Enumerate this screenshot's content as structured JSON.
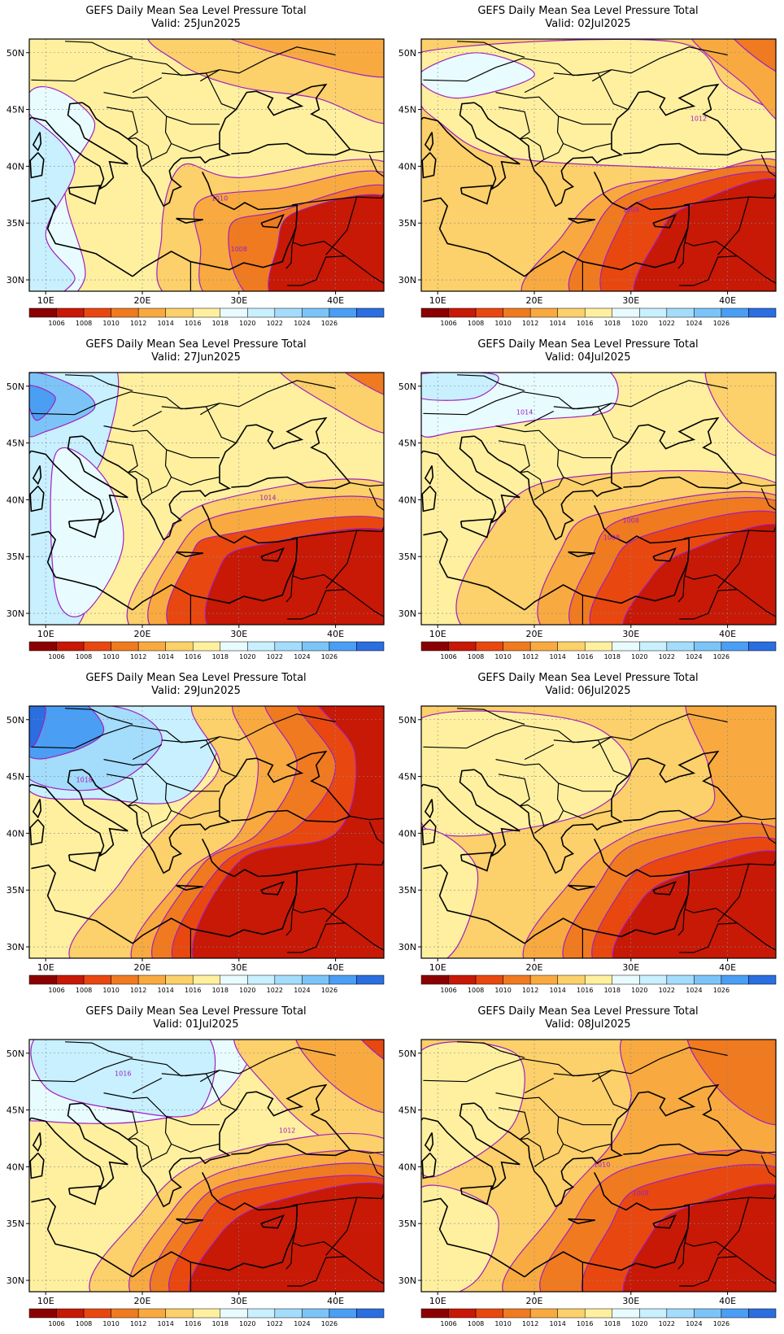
{
  "figure": {
    "title_line": "GEFS Daily Mean Sea Level Pressure Total",
    "valid_prefix": "Valid:",
    "lat_labels": [
      "50N",
      "45N",
      "40N",
      "35N",
      "30N"
    ],
    "lon_labels": [
      "10E",
      "20E",
      "30E",
      "40E"
    ],
    "colorbar": {
      "labels": [
        "1006",
        "1008",
        "1010",
        "1012",
        "1014",
        "1016",
        "1018",
        "1020",
        "1022",
        "1024",
        "1026"
      ],
      "colors": [
        "#8b0000",
        "#c81806",
        "#e84810",
        "#f07a20",
        "#f8aa40",
        "#fcd06a",
        "#fff0a0",
        "#e8fcff",
        "#c8f0ff",
        "#a4dcfc",
        "#7cc4f8",
        "#4a9ef4",
        "#2a6ee0"
      ]
    }
  },
  "panels": [
    {
      "valid": "25Jun2025",
      "contour_labels": [
        "1010",
        "1008"
      ],
      "scheme": 0
    },
    {
      "valid": "02Jul2025",
      "contour_labels": [
        "1012",
        "1008"
      ],
      "scheme": 1
    },
    {
      "valid": "27Jun2025",
      "contour_labels": [
        "1014"
      ],
      "scheme": 2
    },
    {
      "valid": "04Jul2025",
      "contour_labels": [
        "1014",
        "1008",
        "1008"
      ],
      "scheme": 3
    },
    {
      "valid": "29Jun2025",
      "contour_labels": [
        "1018"
      ],
      "scheme": 4
    },
    {
      "valid": "06Jul2025",
      "contour_labels": [],
      "scheme": 5
    },
    {
      "valid": "01Jul2025",
      "contour_labels": [
        "1016",
        "1012"
      ],
      "scheme": 6
    },
    {
      "valid": "08Jul2025",
      "contour_labels": [
        "1010",
        "1008"
      ],
      "scheme": 7
    }
  ]
}
